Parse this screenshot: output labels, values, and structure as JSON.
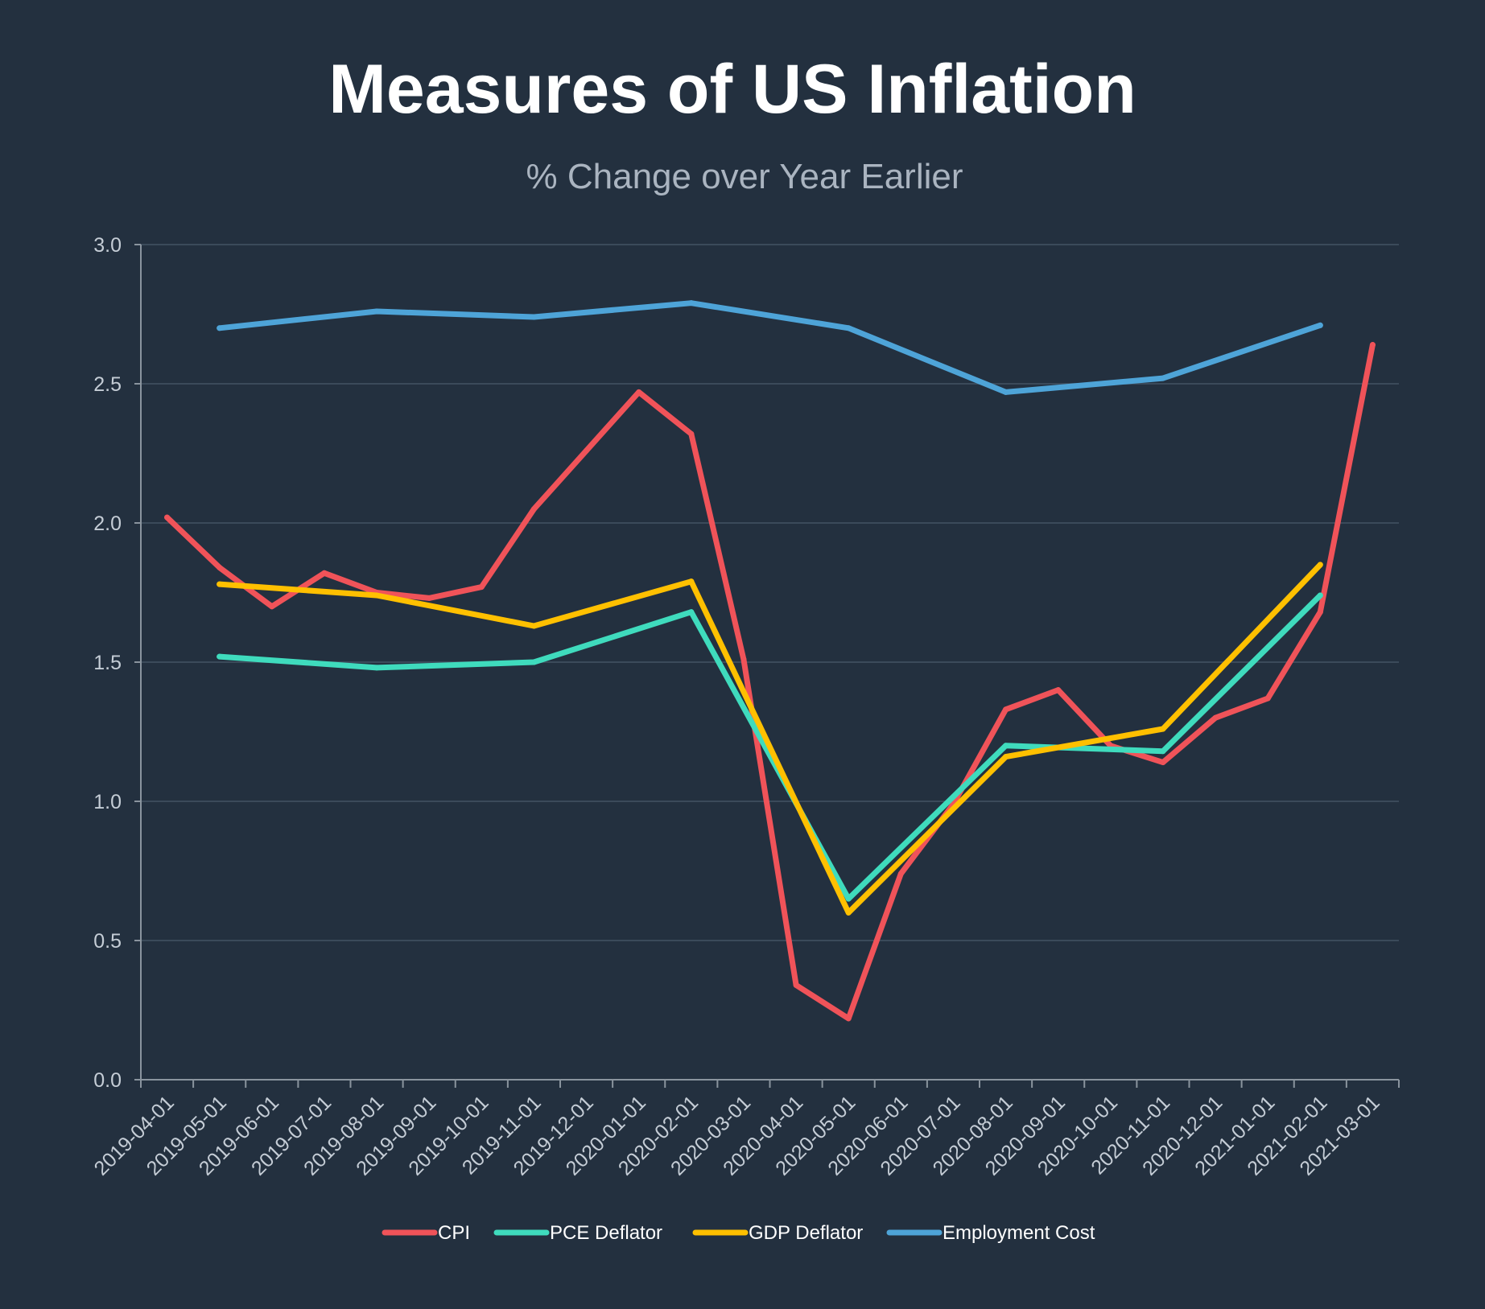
{
  "chart_data": {
    "type": "line",
    "title": "Measures of US Inflation",
    "subtitle": "% Change over Year Earlier",
    "xlabel": "",
    "ylabel": "",
    "ylim": [
      0,
      3
    ],
    "yticks": [
      "0.0",
      "0.5",
      "1.0",
      "1.5",
      "2.0",
      "2.5",
      "3.0"
    ],
    "grid": "horizontal",
    "legend": "bottom-center",
    "categories": [
      "2019-04-01",
      "2019-05-01",
      "2019-06-01",
      "2019-07-01",
      "2019-08-01",
      "2019-09-01",
      "2019-10-01",
      "2019-11-01",
      "2019-12-01",
      "2020-01-01",
      "2020-02-01",
      "2020-03-01",
      "2020-04-01",
      "2020-05-01",
      "2020-06-01",
      "2020-07-01",
      "2020-08-01",
      "2020-09-01",
      "2020-10-01",
      "2020-11-01",
      "2020-12-01",
      "2021-01-01",
      "2021-02-01",
      "2021-03-01"
    ],
    "series": [
      {
        "name": "CPI",
        "color": "#f05359",
        "points": [
          {
            "x": 0.0,
            "y": 2.02
          },
          {
            "x": 1.0,
            "y": 1.84
          },
          {
            "x": 2.0,
            "y": 1.7
          },
          {
            "x": 3.0,
            "y": 1.82
          },
          {
            "x": 4.0,
            "y": 1.75
          },
          {
            "x": 5.0,
            "y": 1.73
          },
          {
            "x": 6.0,
            "y": 1.77
          },
          {
            "x": 7.0,
            "y": 2.05
          },
          {
            "x": 8.0,
            "y": 2.26
          },
          {
            "x": 9.0,
            "y": 2.47
          },
          {
            "x": 10.0,
            "y": 2.32
          },
          {
            "x": 11.0,
            "y": 1.51
          },
          {
            "x": 12.0,
            "y": 0.34
          },
          {
            "x": 13.0,
            "y": 0.22
          },
          {
            "x": 14.0,
            "y": 0.74
          },
          {
            "x": 15.0,
            "y": 0.99
          },
          {
            "x": 16.0,
            "y": 1.33
          },
          {
            "x": 17.0,
            "y": 1.4
          },
          {
            "x": 18.0,
            "y": 1.2
          },
          {
            "x": 19.0,
            "y": 1.14
          },
          {
            "x": 20.0,
            "y": 1.3
          },
          {
            "x": 21.0,
            "y": 1.37
          },
          {
            "x": 22.0,
            "y": 1.68
          },
          {
            "x": 23.0,
            "y": 2.64
          }
        ]
      },
      {
        "name": "PCE Deflator",
        "color": "#3fdbbd",
        "points": [
          {
            "x": 1.0,
            "y": 1.52
          },
          {
            "x": 4.0,
            "y": 1.48
          },
          {
            "x": 7.0,
            "y": 1.5
          },
          {
            "x": 10.0,
            "y": 1.68
          },
          {
            "x": 13.0,
            "y": 0.65
          },
          {
            "x": 16.0,
            "y": 1.2
          },
          {
            "x": 19.0,
            "y": 1.18
          },
          {
            "x": 22.0,
            "y": 1.74
          }
        ]
      },
      {
        "name": "GDP Deflator",
        "color": "#ffc000",
        "points": [
          {
            "x": 1.0,
            "y": 1.78
          },
          {
            "x": 4.0,
            "y": 1.74
          },
          {
            "x": 7.0,
            "y": 1.63
          },
          {
            "x": 10.0,
            "y": 1.79
          },
          {
            "x": 13.0,
            "y": 0.6
          },
          {
            "x": 16.0,
            "y": 1.16
          },
          {
            "x": 19.0,
            "y": 1.26
          },
          {
            "x": 22.0,
            "y": 1.85
          }
        ]
      },
      {
        "name": "Employment Cost",
        "color": "#4ea4d8",
        "points": [
          {
            "x": 1.0,
            "y": 2.7
          },
          {
            "x": 4.0,
            "y": 2.76
          },
          {
            "x": 7.0,
            "y": 2.74
          },
          {
            "x": 10.0,
            "y": 2.79
          },
          {
            "x": 13.0,
            "y": 2.7
          },
          {
            "x": 16.0,
            "y": 2.47
          },
          {
            "x": 19.0,
            "y": 2.52
          },
          {
            "x": 22.0,
            "y": 2.71
          }
        ]
      }
    ]
  }
}
